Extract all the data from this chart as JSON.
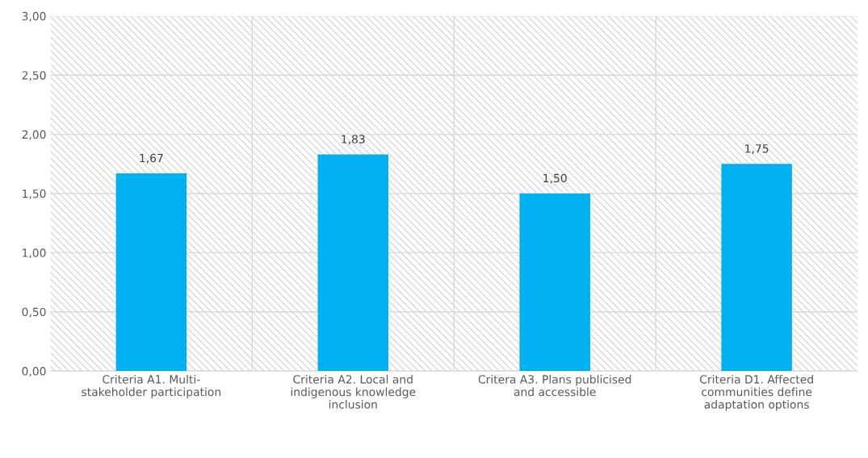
{
  "chart_data": {
    "type": "bar",
    "categories": [
      "Criteria A1. Multi-\nstakeholder participation",
      "Criteria A2. Local and\nindigenous knowledge\ninclusion",
      "Critera A3. Plans publicised\nand accessible",
      "Criteria D1. Affected\ncommunities define\nadaptation options"
    ],
    "values": [
      1.67,
      1.83,
      1.5,
      1.75
    ],
    "value_labels": [
      "1,67",
      "1,83",
      "1,50",
      "1,75"
    ],
    "color": "#00b0f0",
    "ylim": [
      0,
      3
    ],
    "yticks": [
      {
        "value": 0,
        "label": "0,00"
      },
      {
        "value": 0.5,
        "label": "0,50"
      },
      {
        "value": 1,
        "label": "1,00"
      },
      {
        "value": 1.5,
        "label": "1,50"
      },
      {
        "value": 2,
        "label": "2,00"
      },
      {
        "value": 2.5,
        "label": "2,50"
      },
      {
        "value": 3,
        "label": "3,00"
      }
    ],
    "grid": true
  }
}
